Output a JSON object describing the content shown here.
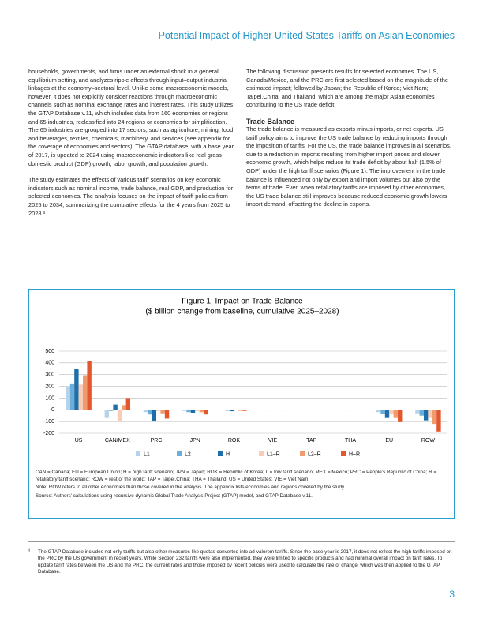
{
  "header": {
    "title": "Potential Impact of Higher United States Tariffs on Asian Economies"
  },
  "left_column": [
    "households, governments, and firms under an external shock in a general equilibrium setting, and analyzes ripple effects through input–output industrial linkages at the economy–sectoral level. Unlike some macroeconomic models, however, it does not explicitly consider reactions through macroeconomic channels such as nominal exchange rates and interest rates. This study utilizes the GTAP Database v.11, which includes data from 160 economies or regions and 65 industries, reclassified into 24 regions or economies for simplification. The 65 industries are grouped into 17 sectors, such as agriculture, mining, food and beverages, textiles, chemicals, machinery, and services (see appendix for the coverage of economies and sectors). The GTAP database, with a base year of 2017, is updated to 2024 using macroeconomic indicators like real gross domestic product (GDP) growth, labor growth, and population growth.",
    "The study estimates the effects of various tariff scenarios on key economic indicators such as nominal income, trade balance, real GDP, and production for selected economies. The analysis focuses on the impact of tariff policies from 2025 to 2034, summarizing the cumulative effects for the 4 years from 2025 to 2028.³"
  ],
  "right_column": {
    "intro": "The following discussion presents results for selected economies. The US, Canada/Mexico, and the PRC are first selected based on the magnitude of the estimated impact; followed by Japan; the Republic of Korea; Viet Nam; Taipei,China; and Thailand, which are among the major Asian economies contributing to the US trade deficit.",
    "heading": "Trade Balance",
    "body": "The trade balance is measured as exports minus imports, or net exports. US tariff policy aims to improve the US trade balance by reducing imports through the imposition of tariffs. For the US, the trade balance improves in all scenarios, due to a reduction in imports resulting from higher import prices and slower economic growth, which helps reduce its trade deficit by about half (1.5% of GDP) under the high tariff scenarios (Figure 1). The improvement in the trade balance is influenced not only by export and import volumes but also by the terms of trade. Even when retaliatory tariffs are imposed by other economies, the US trade balance still improves because reduced economic growth lowers import demand, offsetting the decline in exports."
  },
  "chart_data": {
    "type": "bar",
    "title": "Figure 1: Impact on Trade Balance",
    "subtitle": "($ billion change from baseline, cumulative 2025–2028)",
    "categories": [
      "US",
      "CAN/MEX",
      "PRC",
      "JPN",
      "ROK",
      "VIE",
      "TAP",
      "THA",
      "EU",
      "ROW"
    ],
    "series": [
      {
        "name": "L1",
        "color": "#b7d3ec",
        "values": [
          200,
          -70,
          -20,
          -10,
          -5,
          -3,
          -2,
          -2,
          -20,
          -30
        ]
      },
      {
        "name": "L2",
        "color": "#6aaedb",
        "values": [
          225,
          -10,
          -40,
          -20,
          -8,
          -3,
          -2,
          -3,
          -35,
          -50
        ]
      },
      {
        "name": "H",
        "color": "#1f6ea8",
        "values": [
          345,
          45,
          -95,
          -25,
          -12,
          -5,
          -3,
          -5,
          -70,
          -90
        ]
      },
      {
        "name": "L1–R",
        "color": "#f8ccb6",
        "values": [
          215,
          -100,
          -10,
          -10,
          -5,
          -3,
          -2,
          -2,
          -40,
          -70
        ]
      },
      {
        "name": "L2–R",
        "color": "#f09a70",
        "values": [
          295,
          40,
          -30,
          -20,
          -8,
          -3,
          -2,
          -3,
          -70,
          -120
        ]
      },
      {
        "name": "H–R",
        "color": "#e4572e",
        "values": [
          415,
          100,
          -75,
          -40,
          -10,
          -5,
          -3,
          -5,
          -105,
          -185
        ]
      }
    ],
    "ylim": [
      -200,
      500
    ],
    "yticks": [
      -200,
      -100,
      0,
      100,
      200,
      300,
      400,
      500
    ],
    "grid": true,
    "notes": [
      "CAN = Canada; EU = European Union; H = high tariff scenario; JPN = Japan; ROK = Republic of Korea; L = low tariff scenario; MEX = Mexico; PRC = People’s Republic of China; R = retaliatory tariff scenario; ROW = rest of the world; TAP = Taipei,China; THA = Thailand; US = United States; VIE = Viet Nam.",
      "Note: ROW refers to all other economies than those covered in the analysis. The appendix lists economies and regions covered by the study.",
      "Source: Authors’ calculations using recursive dynamic Global Trade Analysis Project (GTAP) model, and GTAP Database v.11."
    ]
  },
  "footnote": {
    "marker": "³",
    "text": "The GTAP Database includes not only tariffs but also other measures like quotas converted into ad-valorem tariffs. Since the base year is 2017, it does not reflect the high tariffs imposed on the PRC by the US government in recent years. While Section 232 tariffs were also implemented, they were limited to specific products and had minimal overall impact on tariff rates. To update tariff rates between the US and the PRC, the current rates and those imposed by recent policies were used to calculate the rate of change, which was then applied to the GTAP Database."
  },
  "page_number": "3"
}
